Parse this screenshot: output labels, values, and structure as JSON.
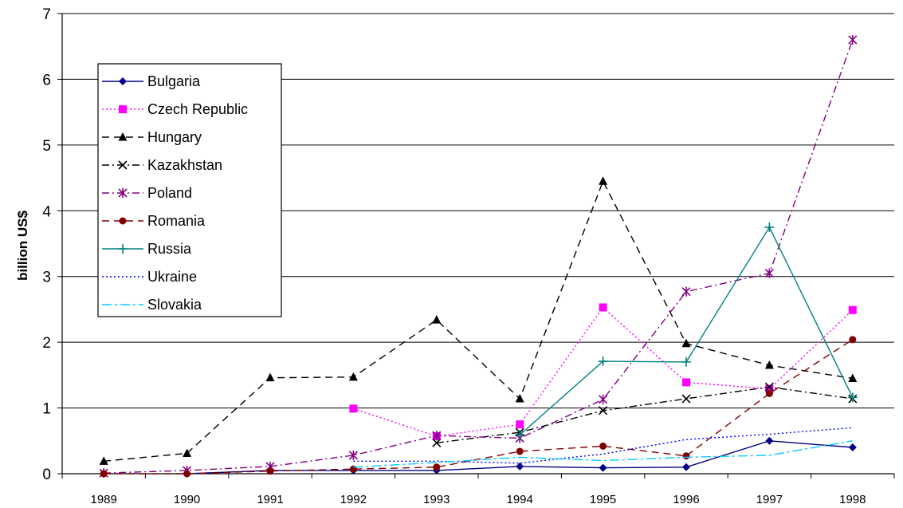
{
  "chart_data": {
    "type": "line",
    "title": "",
    "xlabel": "",
    "ylabel": "billion US$",
    "ylim": [
      0,
      7
    ],
    "yticks": [
      "0",
      "1",
      "2",
      "3",
      "4",
      "5",
      "6",
      "7"
    ],
    "grid": "horizontal",
    "legend_position": "left",
    "categories": [
      "1989",
      "1990",
      "1991",
      "1992",
      "1993",
      "1994",
      "1995",
      "1996",
      "1997",
      "1998"
    ],
    "series": [
      {
        "name": "Bulgaria",
        "color": "#000080",
        "dash": "",
        "marker": "diamond",
        "values": [
          null,
          0.0,
          0.05,
          0.05,
          0.05,
          0.11,
          0.09,
          0.1,
          0.5,
          0.4
        ]
      },
      {
        "name": "Czech Republic",
        "color": "#ff00ff",
        "dash": "2,3",
        "marker": "square",
        "values": [
          null,
          null,
          null,
          0.99,
          0.57,
          0.75,
          2.53,
          1.39,
          1.29,
          2.49
        ]
      },
      {
        "name": "Hungary",
        "color": "#000000",
        "dash": "9,6",
        "marker": "triangle",
        "values": [
          0.19,
          0.31,
          1.46,
          1.47,
          2.34,
          1.14,
          4.45,
          1.98,
          1.65,
          1.45
        ]
      },
      {
        "name": "Kazakhstan",
        "color": "#000000",
        "dash": "9,4,2,4",
        "marker": "x",
        "values": [
          null,
          null,
          null,
          null,
          0.47,
          0.63,
          0.96,
          1.14,
          1.32,
          1.14
        ]
      },
      {
        "name": "Poland",
        "color": "#800080",
        "dash": "9,4,2,4",
        "marker": "star",
        "values": [
          0.01,
          0.05,
          0.11,
          0.28,
          0.58,
          0.54,
          1.13,
          2.77,
          3.05,
          6.6
        ]
      },
      {
        "name": "Romania",
        "color": "#800000",
        "dash": "9,6",
        "marker": "circle",
        "values": [
          0.0,
          0.0,
          0.04,
          0.07,
          0.1,
          0.34,
          0.42,
          0.27,
          1.22,
          2.04
        ]
      },
      {
        "name": "Russia",
        "color": "#008080",
        "dash": "",
        "marker": "plus",
        "values": [
          null,
          null,
          null,
          null,
          null,
          0.59,
          1.71,
          1.7,
          3.75,
          1.16
        ]
      },
      {
        "name": "Ukraine",
        "color": "#0000ff",
        "dash": "2,3",
        "marker": "none",
        "values": [
          null,
          null,
          null,
          0.19,
          0.19,
          0.16,
          0.3,
          0.52,
          0.6,
          0.7
        ]
      },
      {
        "name": "Slovakia",
        "color": "#00ccff",
        "dash": "12,4,3,4",
        "marker": "none",
        "values": [
          null,
          null,
          null,
          0.1,
          0.17,
          0.25,
          0.2,
          0.25,
          0.28,
          0.5
        ]
      }
    ]
  }
}
